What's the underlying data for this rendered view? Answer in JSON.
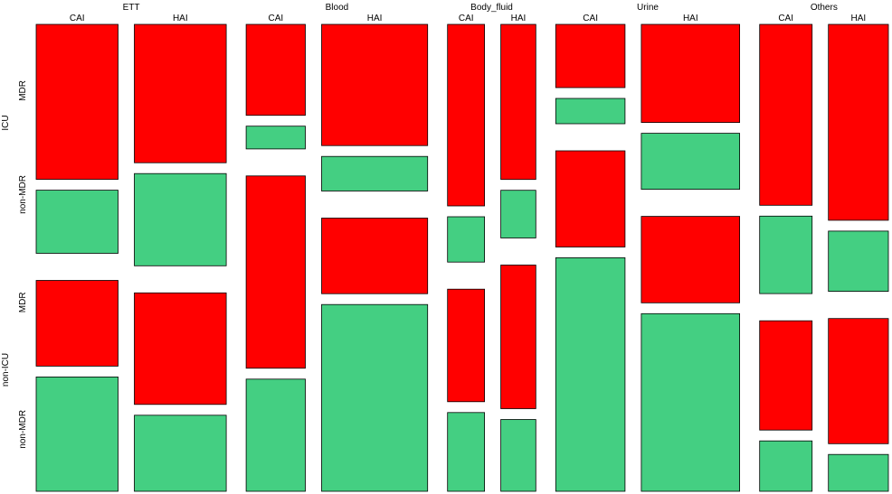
{
  "chart_data": {
    "type": "mosaic",
    "colors": {
      "MDR": "#ff0000",
      "non-MDR": "#44cf82"
    },
    "specimens": [
      "ETT",
      "Blood",
      "Body_fluid",
      "Urine",
      "Others"
    ],
    "acquisition": [
      "CAI",
      "HAI"
    ],
    "wards": [
      "ICU",
      "non-ICU"
    ],
    "resistance": [
      "MDR",
      "non-MDR"
    ],
    "counts": {
      "ETT": {
        "CAI": {
          "ICU": [
            27,
            11
          ],
          "non-ICU": [
            15,
            20
          ]
        },
        "HAI": {
          "ICU": [
            27,
            18
          ],
          "non-ICU": [
            22,
            15
          ]
        }
      },
      "Blood": {
        "CAI": {
          "ICU": [
            12,
            3
          ],
          "non-ICU": [
            24,
            14
          ]
        },
        "HAI": {
          "ICU": [
            28,
            8
          ],
          "non-ICU": [
            17,
            42
          ]
        }
      },
      "Body_fluid": {
        "CAI": {
          "ICU": [
            16,
            4
          ],
          "non-ICU": [
            10,
            7
          ]
        },
        "HAI": {
          "ICU": [
            13,
            4
          ],
          "non-ICU": [
            12,
            6
          ]
        }
      },
      "Urine": {
        "CAI": {
          "ICU": [
            10,
            4
          ],
          "non-ICU": [
            14,
            34
          ]
        },
        "HAI": {
          "ICU": [
            21,
            12
          ],
          "non-ICU": [
            18,
            37
          ]
        }
      },
      "Others": {
        "CAI": {
          "ICU": [
            21,
            9
          ],
          "non-ICU": [
            13,
            6
          ]
        },
        "HAI": {
          "ICU": [
            26,
            8
          ],
          "non-ICU": [
            17,
            5
          ]
        }
      }
    }
  }
}
